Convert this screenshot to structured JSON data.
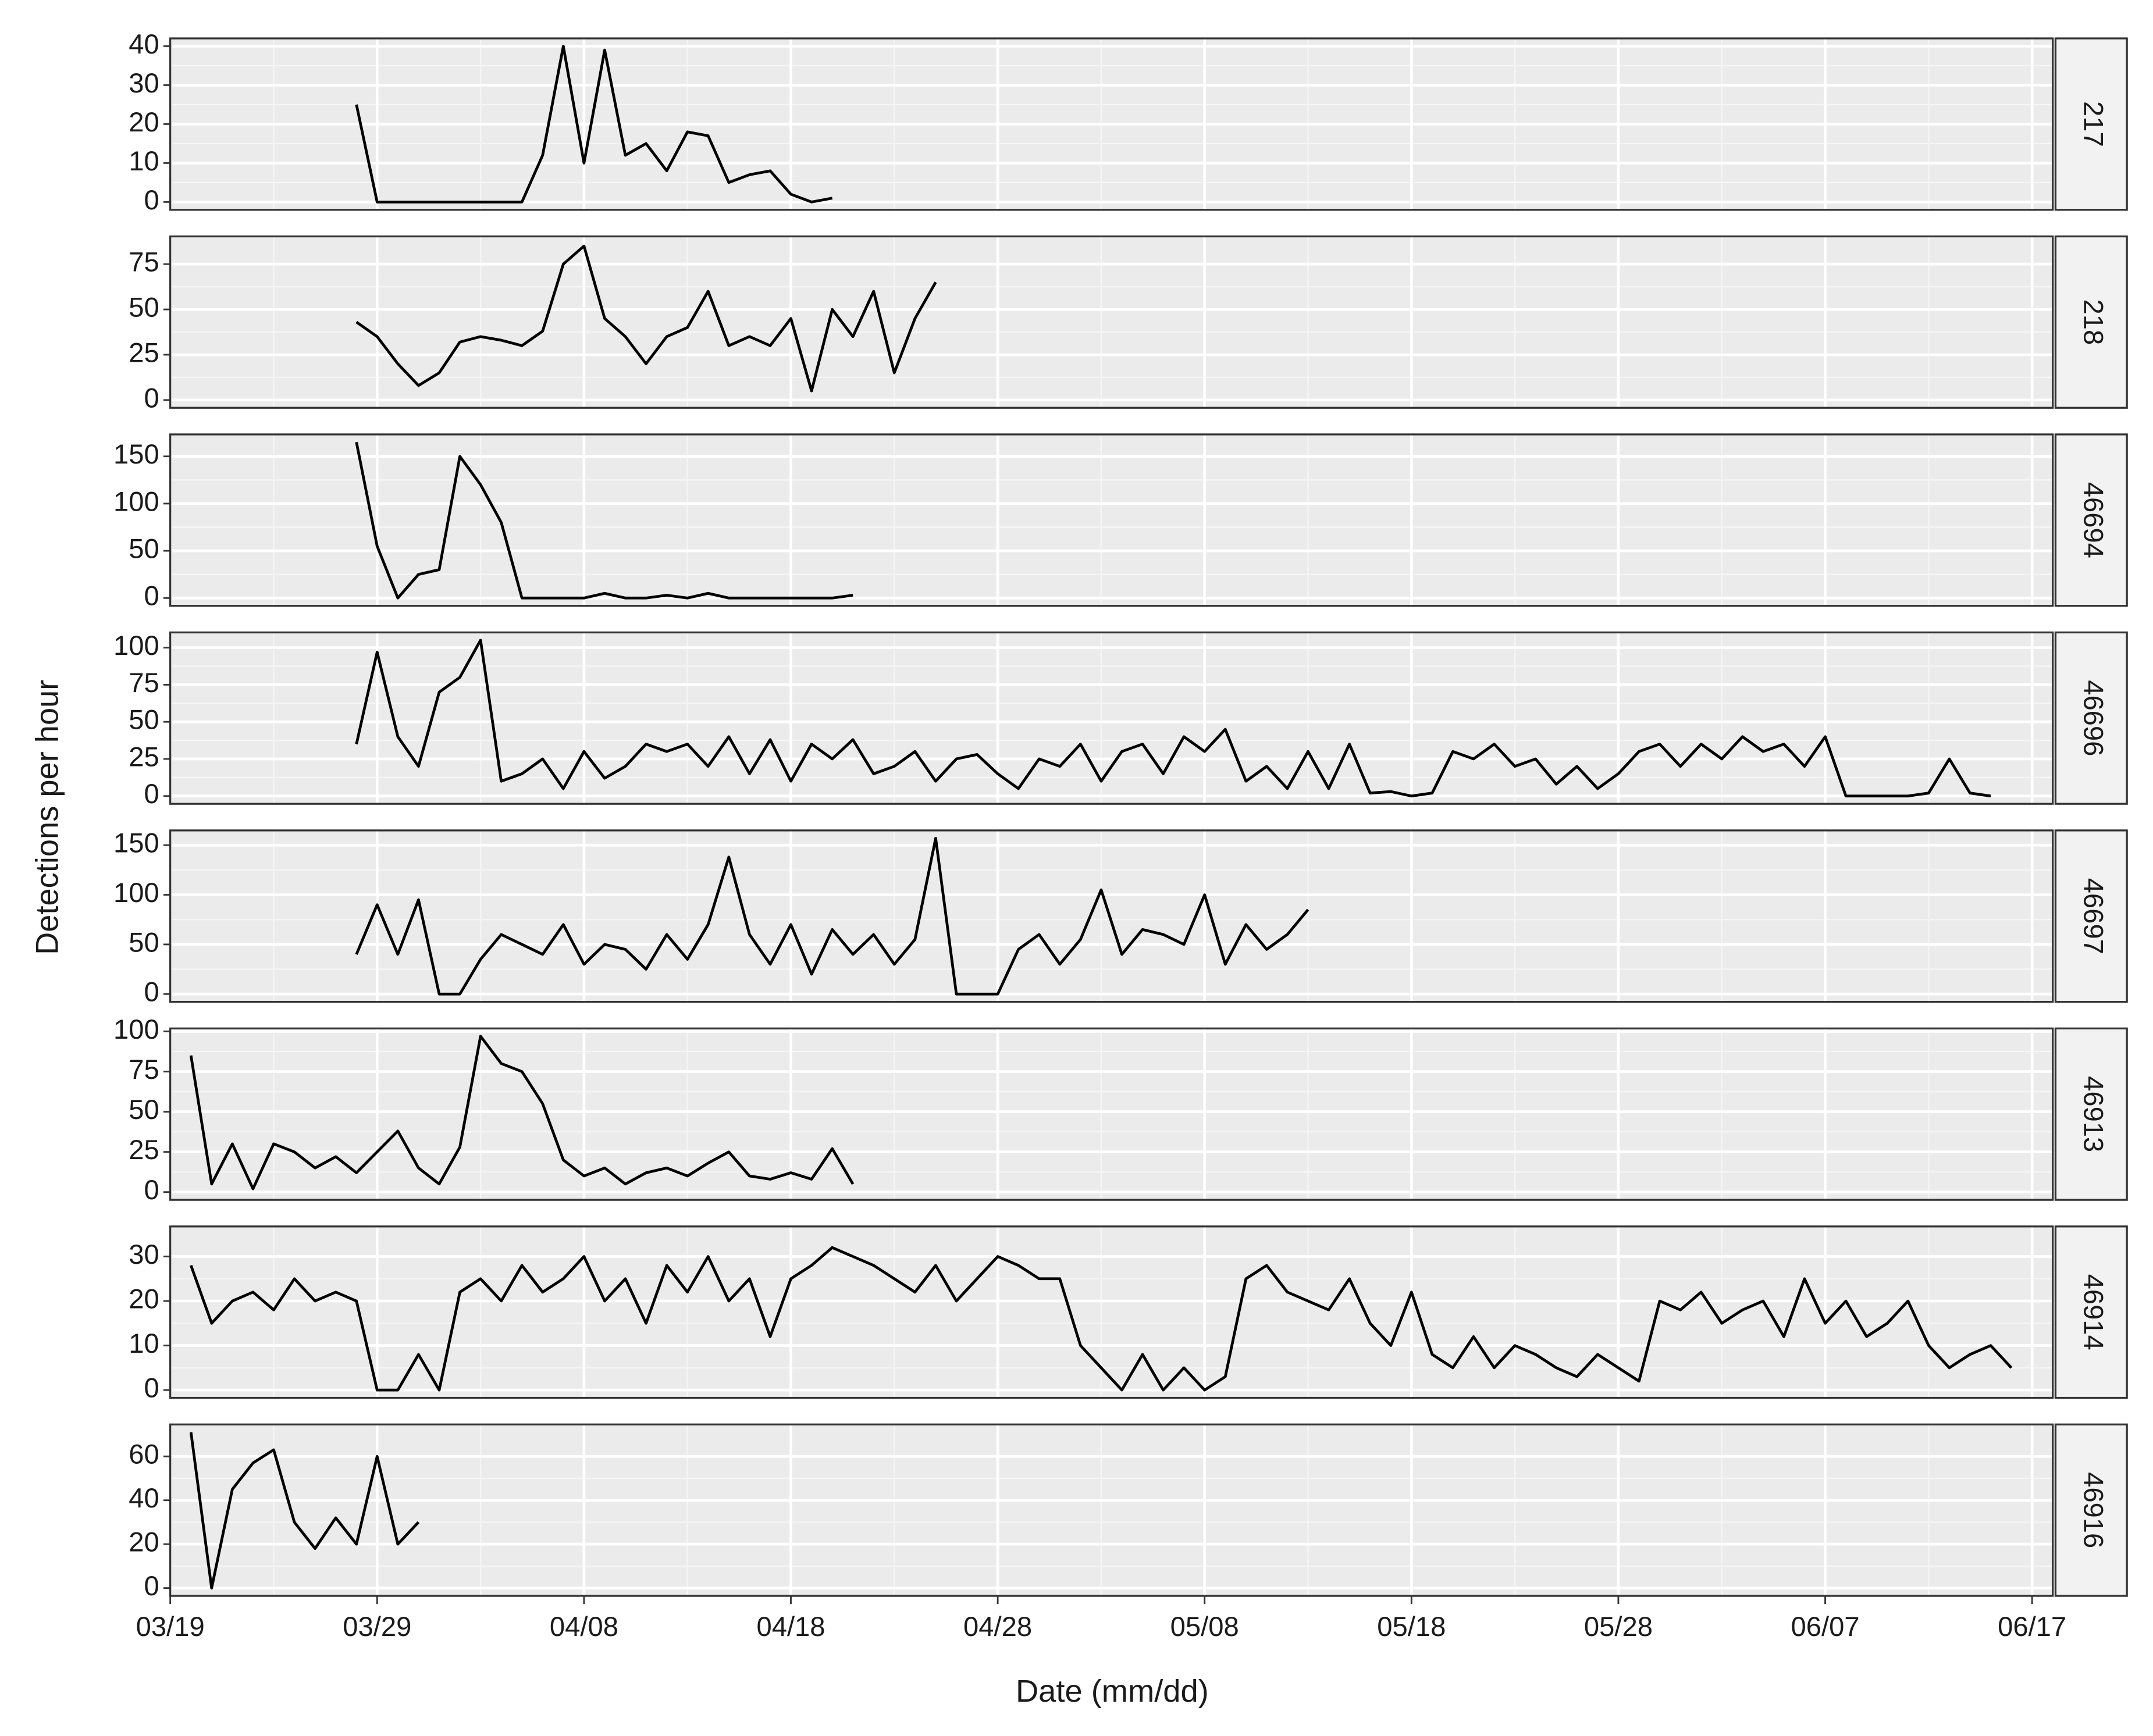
{
  "chart_data": {
    "type": "line",
    "x_label": "Date (mm/dd)",
    "y_label": "Detections per hour",
    "xlim": [
      "03/19",
      "06/18"
    ],
    "xticks": [
      "03/19",
      "03/29",
      "04/08",
      "04/18",
      "04/28",
      "05/08",
      "05/18",
      "05/28",
      "06/07",
      "06/17"
    ],
    "grid": true,
    "color": "#000000",
    "panels": [
      {
        "name": "217",
        "ylim": [
          -2,
          42
        ],
        "yticks": [
          0,
          10,
          20,
          30,
          40
        ],
        "x": [
          "03/28",
          "03/29",
          "03/30",
          "03/31",
          "04/01",
          "04/02",
          "04/03",
          "04/04",
          "04/05",
          "04/06",
          "04/07",
          "04/08",
          "04/09",
          "04/10",
          "04/11",
          "04/12",
          "04/13",
          "04/14",
          "04/15",
          "04/16",
          "04/17",
          "04/18",
          "04/19",
          "04/20"
        ],
        "values": [
          25,
          0,
          0,
          0,
          0,
          0,
          0,
          0,
          0,
          12,
          40,
          10,
          39,
          12,
          15,
          8,
          18,
          17,
          5,
          7,
          8,
          2,
          0,
          1
        ]
      },
      {
        "name": "218",
        "ylim": [
          -4.3,
          90.3
        ],
        "yticks": [
          0,
          25,
          50,
          75
        ],
        "x": [
          "03/28",
          "03/29",
          "03/30",
          "03/31",
          "04/01",
          "04/02",
          "04/03",
          "04/04",
          "04/05",
          "04/06",
          "04/07",
          "04/08",
          "04/09",
          "04/10",
          "04/11",
          "04/12",
          "04/13",
          "04/14",
          "04/15",
          "04/16",
          "04/17",
          "04/18",
          "04/19",
          "04/20",
          "04/21",
          "04/22",
          "04/23",
          "04/24",
          "04/25"
        ],
        "values": [
          43,
          35,
          20,
          8,
          15,
          32,
          35,
          33,
          30,
          38,
          75,
          85,
          45,
          35,
          20,
          35,
          40,
          60,
          30,
          35,
          30,
          45,
          5,
          50,
          35,
          60,
          15,
          45,
          65
        ]
      },
      {
        "name": "46694",
        "ylim": [
          -8.25,
          173.25
        ],
        "yticks": [
          0,
          50,
          100,
          150
        ],
        "x": [
          "03/28",
          "03/29",
          "03/30",
          "03/31",
          "04/01",
          "04/02",
          "04/03",
          "04/04",
          "04/05",
          "04/06",
          "04/07",
          "04/08",
          "04/09",
          "04/10",
          "04/11",
          "04/12",
          "04/13",
          "04/14",
          "04/15",
          "04/16",
          "04/17",
          "04/18",
          "04/19",
          "04/20",
          "04/21"
        ],
        "values": [
          165,
          55,
          0,
          25,
          30,
          150,
          120,
          80,
          0,
          0,
          0,
          0,
          5,
          0,
          0,
          3,
          0,
          5,
          0,
          0,
          0,
          0,
          0,
          0,
          3
        ]
      },
      {
        "name": "46696",
        "ylim": [
          -5.25,
          110.25
        ],
        "yticks": [
          0,
          25,
          50,
          75,
          100
        ],
        "x": [
          "03/28",
          "03/29",
          "03/30",
          "03/31",
          "04/01",
          "04/02",
          "04/03",
          "04/04",
          "04/05",
          "04/06",
          "04/07",
          "04/08",
          "04/09",
          "04/10",
          "04/11",
          "04/12",
          "04/13",
          "04/14",
          "04/15",
          "04/16",
          "04/17",
          "04/18",
          "04/19",
          "04/20",
          "04/21",
          "04/22",
          "04/23",
          "04/24",
          "04/25",
          "04/26",
          "04/27",
          "04/28",
          "04/29",
          "04/30",
          "05/01",
          "05/02",
          "05/03",
          "05/04",
          "05/05",
          "05/06",
          "05/07",
          "05/08",
          "05/09",
          "05/10",
          "05/11",
          "05/12",
          "05/13",
          "05/14",
          "05/15",
          "05/16",
          "05/17",
          "05/18",
          "05/19",
          "05/20",
          "05/21",
          "05/22",
          "05/23",
          "05/24",
          "05/25",
          "05/26",
          "05/27",
          "05/28",
          "05/29",
          "05/30",
          "05/31",
          "06/01",
          "06/02",
          "06/03",
          "06/04",
          "06/05",
          "06/06",
          "06/07",
          "06/08",
          "06/09",
          "06/10",
          "06/11",
          "06/12",
          "06/13",
          "06/14",
          "06/15"
        ],
        "values": [
          35,
          97,
          40,
          20,
          70,
          80,
          105,
          10,
          15,
          25,
          5,
          30,
          12,
          20,
          35,
          30,
          35,
          20,
          40,
          15,
          38,
          10,
          35,
          25,
          38,
          15,
          20,
          30,
          10,
          25,
          28,
          15,
          5,
          25,
          20,
          35,
          10,
          30,
          35,
          15,
          40,
          30,
          45,
          10,
          20,
          5,
          30,
          5,
          35,
          2,
          3,
          0,
          2,
          30,
          25,
          35,
          20,
          25,
          8,
          20,
          5,
          15,
          30,
          35,
          20,
          35,
          25,
          40,
          30,
          35,
          20,
          40,
          0,
          0,
          0,
          0,
          2,
          25,
          2,
          0
        ]
      },
      {
        "name": "46697",
        "ylim": [
          -7.85,
          164.85
        ],
        "yticks": [
          0,
          50,
          100,
          150
        ],
        "x": [
          "03/28",
          "03/29",
          "03/30",
          "03/31",
          "04/01",
          "04/02",
          "04/03",
          "04/04",
          "04/05",
          "04/06",
          "04/07",
          "04/08",
          "04/09",
          "04/10",
          "04/11",
          "04/12",
          "04/13",
          "04/14",
          "04/15",
          "04/16",
          "04/17",
          "04/18",
          "04/19",
          "04/20",
          "04/21",
          "04/22",
          "04/23",
          "04/24",
          "04/25",
          "04/26",
          "04/27",
          "04/28",
          "04/29",
          "04/30",
          "05/01",
          "05/02",
          "05/03",
          "05/04",
          "05/05",
          "05/06",
          "05/07",
          "05/08",
          "05/09",
          "05/10",
          "05/11",
          "05/12",
          "05/13"
        ],
        "values": [
          40,
          90,
          40,
          95,
          0,
          0,
          35,
          60,
          50,
          40,
          70,
          30,
          50,
          45,
          25,
          60,
          35,
          70,
          138,
          60,
          30,
          70,
          20,
          65,
          40,
          60,
          30,
          55,
          157,
          0,
          0,
          0,
          45,
          60,
          30,
          55,
          105,
          40,
          65,
          60,
          50,
          100,
          30,
          70,
          45,
          60,
          85
        ]
      },
      {
        "name": "46913",
        "ylim": [
          -4.85,
          101.85
        ],
        "yticks": [
          0,
          25,
          50,
          75,
          100
        ],
        "x": [
          "03/20",
          "03/21",
          "03/22",
          "03/23",
          "03/24",
          "03/25",
          "03/26",
          "03/27",
          "03/28",
          "03/29",
          "03/30",
          "03/31",
          "04/01",
          "04/02",
          "04/03",
          "04/04",
          "04/05",
          "04/06",
          "04/07",
          "04/08",
          "04/09",
          "04/10",
          "04/11",
          "04/12",
          "04/13",
          "04/14",
          "04/15",
          "04/16",
          "04/17",
          "04/18",
          "04/19",
          "04/20",
          "04/21"
        ],
        "values": [
          85,
          5,
          30,
          2,
          30,
          25,
          15,
          22,
          12,
          25,
          38,
          15,
          5,
          28,
          97,
          80,
          75,
          55,
          20,
          10,
          15,
          5,
          12,
          15,
          10,
          18,
          25,
          10,
          8,
          12,
          8,
          27,
          5
        ]
      },
      {
        "name": "46914",
        "ylim": [
          -1.75,
          36.75
        ],
        "yticks": [
          0,
          10,
          20,
          30
        ],
        "x": [
          "03/20",
          "03/21",
          "03/22",
          "03/23",
          "03/24",
          "03/25",
          "03/26",
          "03/27",
          "03/28",
          "03/29",
          "03/30",
          "03/31",
          "04/01",
          "04/02",
          "04/03",
          "04/04",
          "04/05",
          "04/06",
          "04/07",
          "04/08",
          "04/09",
          "04/10",
          "04/11",
          "04/12",
          "04/13",
          "04/14",
          "04/15",
          "04/16",
          "04/17",
          "04/18",
          "04/19",
          "04/20",
          "04/21",
          "04/22",
          "04/23",
          "04/24",
          "04/25",
          "04/26",
          "04/27",
          "04/28",
          "04/29",
          "04/30",
          "05/01",
          "05/02",
          "05/03",
          "05/04",
          "05/05",
          "05/06",
          "05/07",
          "05/08",
          "05/09",
          "05/10",
          "05/11",
          "05/12",
          "05/13",
          "05/14",
          "05/15",
          "05/16",
          "05/17",
          "05/18",
          "05/19",
          "05/20",
          "05/21",
          "05/22",
          "05/23",
          "05/24",
          "05/25",
          "05/26",
          "05/27",
          "05/28",
          "05/29",
          "05/30",
          "05/31",
          "06/01",
          "06/02",
          "06/03",
          "06/04",
          "06/05",
          "06/06",
          "06/07",
          "06/08",
          "06/09",
          "06/10",
          "06/11",
          "06/12",
          "06/13",
          "06/14",
          "06/15",
          "06/16"
        ],
        "values": [
          28,
          15,
          20,
          22,
          18,
          25,
          20,
          22,
          20,
          0,
          0,
          8,
          0,
          22,
          25,
          20,
          28,
          22,
          25,
          30,
          20,
          25,
          15,
          28,
          22,
          30,
          20,
          25,
          12,
          25,
          28,
          32,
          30,
          28,
          25,
          22,
          28,
          20,
          25,
          30,
          28,
          25,
          25,
          10,
          5,
          0,
          8,
          0,
          5,
          0,
          3,
          25,
          28,
          22,
          20,
          18,
          25,
          15,
          10,
          22,
          8,
          5,
          12,
          5,
          10,
          8,
          5,
          3,
          8,
          5,
          2,
          20,
          18,
          22,
          15,
          18,
          20,
          12,
          25,
          15,
          20,
          12,
          15,
          20,
          10,
          5,
          8,
          10,
          5
        ]
      },
      {
        "name": "46916",
        "ylim": [
          -3.55,
          74.55
        ],
        "yticks": [
          0,
          20,
          40,
          60
        ],
        "x": [
          "03/20",
          "03/21",
          "03/22",
          "03/23",
          "03/24",
          "03/25",
          "03/26",
          "03/27",
          "03/28",
          "03/29",
          "03/30",
          "03/31"
        ],
        "values": [
          71,
          0,
          45,
          57,
          63,
          30,
          18,
          32,
          20,
          60,
          20,
          30
        ]
      }
    ]
  }
}
